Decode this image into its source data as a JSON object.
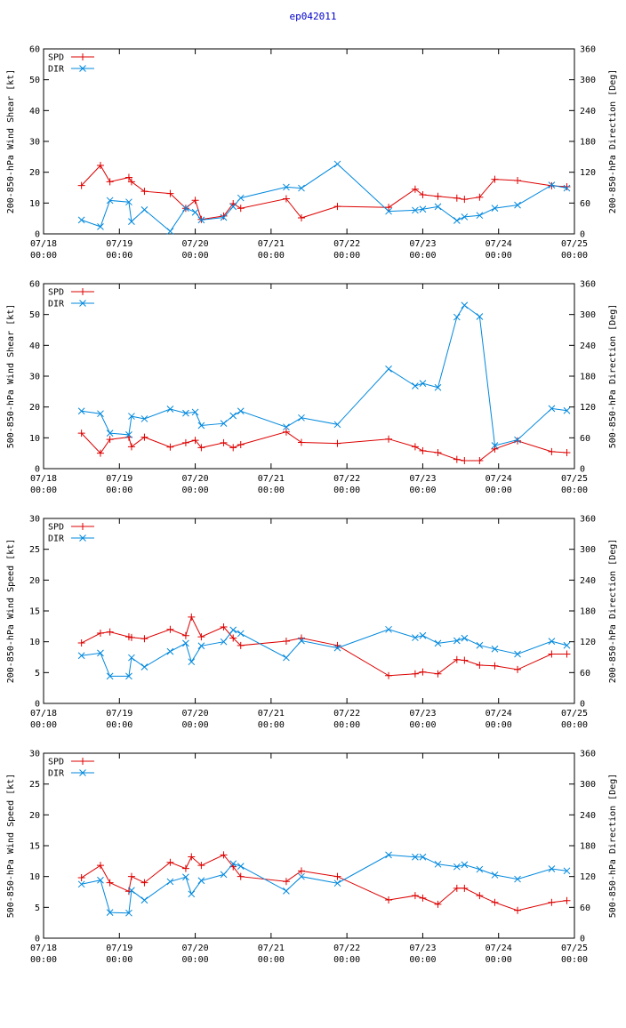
{
  "title": "ep042011",
  "colors": {
    "spd": "#dd0000",
    "dir": "#0088dd",
    "axis": "#000000",
    "title": "#0000cc"
  },
  "x_ticks": [
    "07/18",
    "07/19",
    "07/20",
    "07/21",
    "07/22",
    "07/23",
    "07/24",
    "07/25"
  ],
  "x_time": "00:00",
  "legend": {
    "spd": "SPD",
    "dir": "DIR"
  },
  "chart_data": [
    {
      "type": "line",
      "ylabel_left": "200-850-hPa Wind Shear [kt]",
      "ylabel_right": "200-850-hPa Direction [Deg]",
      "ylim_left": [
        0,
        60
      ],
      "yticks_left": [
        0,
        10,
        20,
        30,
        40,
        50,
        60
      ],
      "ylim_right": [
        0,
        360
      ],
      "yticks_right": [
        0,
        60,
        120,
        180,
        240,
        300,
        360
      ],
      "xlim_days": [
        0,
        7
      ],
      "series": [
        {
          "name": "SPD",
          "axis": "left",
          "x": [
            0.5,
            0.75,
            0.875,
            1.125,
            1.16,
            1.33,
            1.67,
            1.875,
            2.0,
            2.08,
            2.375,
            2.5,
            2.6,
            3.2,
            3.4,
            3.875,
            4.55,
            4.9,
            5.0,
            5.2,
            5.45,
            5.55,
            5.75,
            5.95,
            6.25,
            6.7,
            6.9
          ],
          "values": [
            15.7,
            22.2,
            16.9,
            18.3,
            16.9,
            13.8,
            13.1,
            8.3,
            10.9,
            4.7,
            5.8,
            9.8,
            8.3,
            11.4,
            5.2,
            8.9,
            8.6,
            14.5,
            12.7,
            12.2,
            11.6,
            11.2,
            11.9,
            17.7,
            17.3,
            15.6,
            15.3
          ]
        },
        {
          "name": "DIR",
          "axis": "right",
          "x": [
            0.5,
            0.75,
            0.875,
            1.125,
            1.16,
            1.33,
            1.67,
            1.875,
            2.0,
            2.08,
            2.375,
            2.5,
            2.6,
            3.2,
            3.4,
            3.875,
            4.55,
            4.9,
            5.0,
            5.2,
            5.45,
            5.55,
            5.75,
            5.95,
            6.25,
            6.7,
            6.9
          ],
          "values": [
            27,
            14,
            65,
            62,
            24,
            47,
            5,
            50,
            42,
            27,
            32,
            53,
            70,
            91,
            89,
            136,
            44,
            46,
            48,
            53,
            26,
            33,
            36,
            50,
            56,
            95,
            89
          ]
        }
      ]
    },
    {
      "type": "line",
      "ylabel_left": "500-850-hPa Wind Shear [kt]",
      "ylabel_right": "500-850-hPa Direction [Deg]",
      "ylim_left": [
        0,
        60
      ],
      "yticks_left": [
        0,
        10,
        20,
        30,
        40,
        50,
        60
      ],
      "ylim_right": [
        0,
        360
      ],
      "yticks_right": [
        0,
        60,
        120,
        180,
        240,
        300,
        360
      ],
      "xlim_days": [
        0,
        7
      ],
      "series": [
        {
          "name": "SPD",
          "axis": "left",
          "x": [
            0.5,
            0.75,
            0.875,
            1.125,
            1.16,
            1.33,
            1.67,
            1.875,
            2.0,
            2.08,
            2.375,
            2.5,
            2.6,
            3.2,
            3.4,
            3.875,
            4.55,
            4.9,
            5.0,
            5.2,
            5.45,
            5.55,
            5.75,
            5.95,
            6.25,
            6.7,
            6.9
          ],
          "values": [
            11.5,
            5.0,
            9.5,
            10.2,
            7.1,
            10.2,
            7.0,
            8.4,
            9.2,
            6.8,
            8.4,
            6.8,
            7.8,
            11.9,
            8.5,
            8.2,
            9.6,
            7.1,
            5.8,
            5.2,
            3.0,
            2.6,
            2.6,
            6.4,
            9.0,
            5.5,
            5.2
          ]
        },
        {
          "name": "DIR",
          "axis": "right",
          "x": [
            0.5,
            0.75,
            0.875,
            1.125,
            1.16,
            1.33,
            1.67,
            1.875,
            2.0,
            2.08,
            2.375,
            2.5,
            2.6,
            3.2,
            3.4,
            3.875,
            4.55,
            4.9,
            5.0,
            5.2,
            5.45,
            5.55,
            5.75,
            5.95,
            6.25,
            6.7,
            6.9
          ],
          "values": [
            112,
            107,
            69,
            66,
            102,
            97,
            116,
            108,
            110,
            84,
            88,
            103,
            112,
            81,
            99,
            86,
            194,
            161,
            166,
            158,
            295,
            318,
            296,
            45,
            56,
            117,
            113
          ]
        }
      ]
    },
    {
      "type": "line",
      "ylabel_left": "200-850-hPa Wind Speed [kt]",
      "ylabel_right": "200-850-hPa Direction [Deg]",
      "ylim_left": [
        0,
        30
      ],
      "yticks_left": [
        0,
        5,
        10,
        15,
        20,
        25,
        30
      ],
      "ylim_right": [
        0,
        360
      ],
      "yticks_right": [
        0,
        60,
        120,
        180,
        240,
        300,
        360
      ],
      "xlim_days": [
        0,
        7
      ],
      "series": [
        {
          "name": "SPD",
          "axis": "left",
          "x": [
            0.5,
            0.75,
            0.875,
            1.125,
            1.16,
            1.33,
            1.67,
            1.875,
            1.95,
            2.08,
            2.375,
            2.5,
            2.6,
            3.2,
            3.4,
            3.875,
            4.55,
            4.9,
            5.0,
            5.2,
            5.45,
            5.55,
            5.75,
            5.95,
            6.25,
            6.7,
            6.9
          ],
          "values": [
            9.8,
            11.4,
            11.6,
            10.8,
            10.7,
            10.5,
            12.0,
            11.0,
            14.0,
            10.8,
            12.4,
            10.6,
            9.4,
            10.1,
            10.6,
            9.4,
            4.5,
            4.8,
            5.1,
            4.8,
            7.1,
            7.0,
            6.2,
            6.1,
            5.5,
            8.0,
            8.0
          ]
        },
        {
          "name": "DIR",
          "axis": "right",
          "x": [
            0.5,
            0.75,
            0.875,
            1.125,
            1.16,
            1.33,
            1.67,
            1.875,
            1.95,
            2.08,
            2.375,
            2.5,
            2.6,
            3.2,
            3.4,
            3.875,
            4.55,
            4.9,
            5.0,
            5.2,
            5.45,
            5.55,
            5.75,
            5.95,
            6.25,
            6.7,
            6.9
          ],
          "values": [
            93,
            98,
            53,
            53,
            89,
            71,
            101,
            117,
            81,
            112,
            120,
            143,
            136,
            89,
            122,
            108,
            144,
            128,
            132,
            117,
            122,
            127,
            113,
            106,
            96,
            121,
            113
          ]
        }
      ]
    },
    {
      "type": "line",
      "ylabel_left": "500-850-hPa Wind Speed [kt]",
      "ylabel_right": "500-850-hPa Direction [Deg]",
      "ylim_left": [
        0,
        30
      ],
      "yticks_left": [
        0,
        5,
        10,
        15,
        20,
        25,
        30
      ],
      "ylim_right": [
        0,
        360
      ],
      "yticks_right": [
        0,
        60,
        120,
        180,
        240,
        300,
        360
      ],
      "xlim_days": [
        0,
        7
      ],
      "series": [
        {
          "name": "SPD",
          "axis": "left",
          "x": [
            0.5,
            0.75,
            0.875,
            1.125,
            1.16,
            1.33,
            1.67,
            1.875,
            1.95,
            2.08,
            2.375,
            2.5,
            2.6,
            3.2,
            3.4,
            3.875,
            4.55,
            4.9,
            5.0,
            5.2,
            5.45,
            5.55,
            5.75,
            5.95,
            6.25,
            6.7,
            6.9
          ],
          "values": [
            9.8,
            11.8,
            9.0,
            7.6,
            10.0,
            9.0,
            12.3,
            11.3,
            13.2,
            11.8,
            13.5,
            11.6,
            10.0,
            9.2,
            10.9,
            10.0,
            6.2,
            6.9,
            6.5,
            5.5,
            8.1,
            8.1,
            6.9,
            5.8,
            4.5,
            5.8,
            6.1
          ]
        },
        {
          "name": "DIR",
          "axis": "right",
          "x": [
            0.5,
            0.75,
            0.875,
            1.125,
            1.16,
            1.33,
            1.67,
            1.875,
            1.95,
            2.08,
            2.375,
            2.5,
            2.6,
            3.2,
            3.4,
            3.875,
            4.55,
            4.9,
            5.0,
            5.2,
            5.45,
            5.55,
            5.75,
            5.95,
            6.25,
            6.7,
            6.9
          ],
          "values": [
            105,
            113,
            50,
            49,
            93,
            74,
            110,
            119,
            86,
            112,
            124,
            145,
            140,
            92,
            120,
            107,
            162,
            158,
            158,
            144,
            139,
            143,
            134,
            123,
            115,
            135,
            131
          ]
        }
      ]
    }
  ]
}
